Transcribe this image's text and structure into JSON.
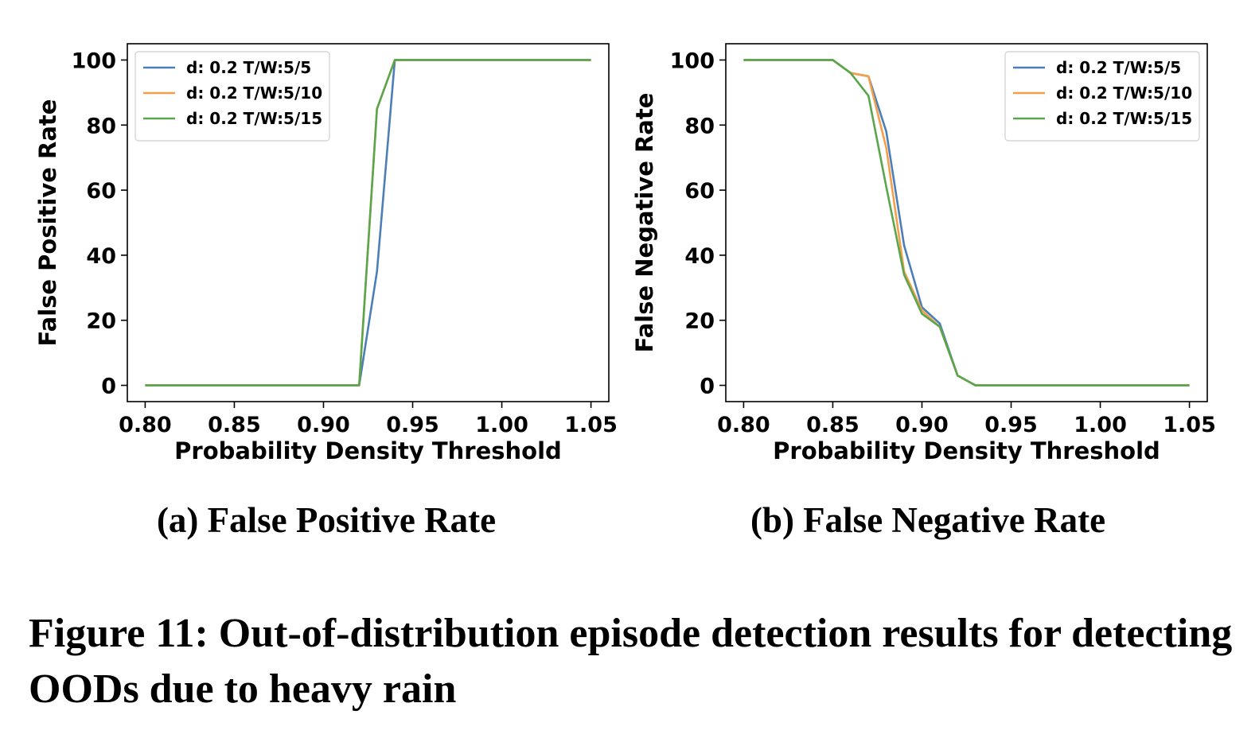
{
  "chart_data": [
    {
      "type": "line",
      "title": "",
      "subcaption": "(a) False Positive Rate",
      "xlabel": "Probability Density Threshold",
      "ylabel": "False Positive Rate",
      "xlim": [
        0.79,
        1.06
      ],
      "ylim": [
        -5,
        105
      ],
      "xticks": [
        "0.80",
        "0.85",
        "0.90",
        "0.95",
        "1.00",
        "1.05"
      ],
      "yticks": [
        "0",
        "20",
        "40",
        "60",
        "80",
        "100"
      ],
      "grid": false,
      "legend_position": "top-left",
      "series": [
        {
          "name": "d: 0.2 T/W:5/5",
          "color": "#4c7eb7",
          "x": [
            0.8,
            0.92,
            0.93,
            0.94,
            1.05
          ],
          "y": [
            0,
            0,
            35,
            100,
            100
          ]
        },
        {
          "name": "d: 0.2 T/W:5/10",
          "color": "#f4a04a",
          "x": [
            0.8,
            0.92,
            0.93,
            0.94,
            1.05
          ],
          "y": [
            0,
            0,
            85,
            100,
            100
          ]
        },
        {
          "name": "d: 0.2 T/W:5/15",
          "color": "#5aa64c",
          "x": [
            0.8,
            0.92,
            0.93,
            0.94,
            1.05
          ],
          "y": [
            0,
            0,
            85,
            100,
            100
          ]
        }
      ]
    },
    {
      "type": "line",
      "title": "",
      "subcaption": "(b) False Negative Rate",
      "xlabel": "Probability Density Threshold",
      "ylabel": "False Negative Rate",
      "xlim": [
        0.79,
        1.06
      ],
      "ylim": [
        -5,
        105
      ],
      "xticks": [
        "0.80",
        "0.85",
        "0.90",
        "0.95",
        "1.00",
        "1.05"
      ],
      "yticks": [
        "0",
        "20",
        "40",
        "60",
        "80",
        "100"
      ],
      "grid": false,
      "legend_position": "top-right",
      "series": [
        {
          "name": "d: 0.2 T/W:5/5",
          "color": "#4c7eb7",
          "x": [
            0.8,
            0.85,
            0.86,
            0.87,
            0.88,
            0.89,
            0.9,
            0.91,
            0.92,
            0.93,
            1.05
          ],
          "y": [
            100,
            100,
            96,
            95,
            78,
            43,
            24,
            19,
            3,
            0,
            0
          ]
        },
        {
          "name": "d: 0.2 T/W:5/10",
          "color": "#f4a04a",
          "x": [
            0.8,
            0.85,
            0.86,
            0.87,
            0.88,
            0.89,
            0.9,
            0.91,
            0.92,
            0.93,
            1.05
          ],
          "y": [
            100,
            100,
            96,
            95,
            73,
            35,
            23,
            18,
            3,
            0,
            0
          ]
        },
        {
          "name": "d: 0.2 T/W:5/15",
          "color": "#5aa64c",
          "x": [
            0.8,
            0.85,
            0.86,
            0.87,
            0.88,
            0.89,
            0.9,
            0.91,
            0.92,
            0.93,
            1.05
          ],
          "y": [
            100,
            100,
            96,
            89,
            61,
            34,
            22,
            18,
            3,
            0,
            0
          ]
        }
      ]
    }
  ],
  "caption": "Figure 11: Out-of-distribution episode detection results for detecting OODs due to heavy rain"
}
